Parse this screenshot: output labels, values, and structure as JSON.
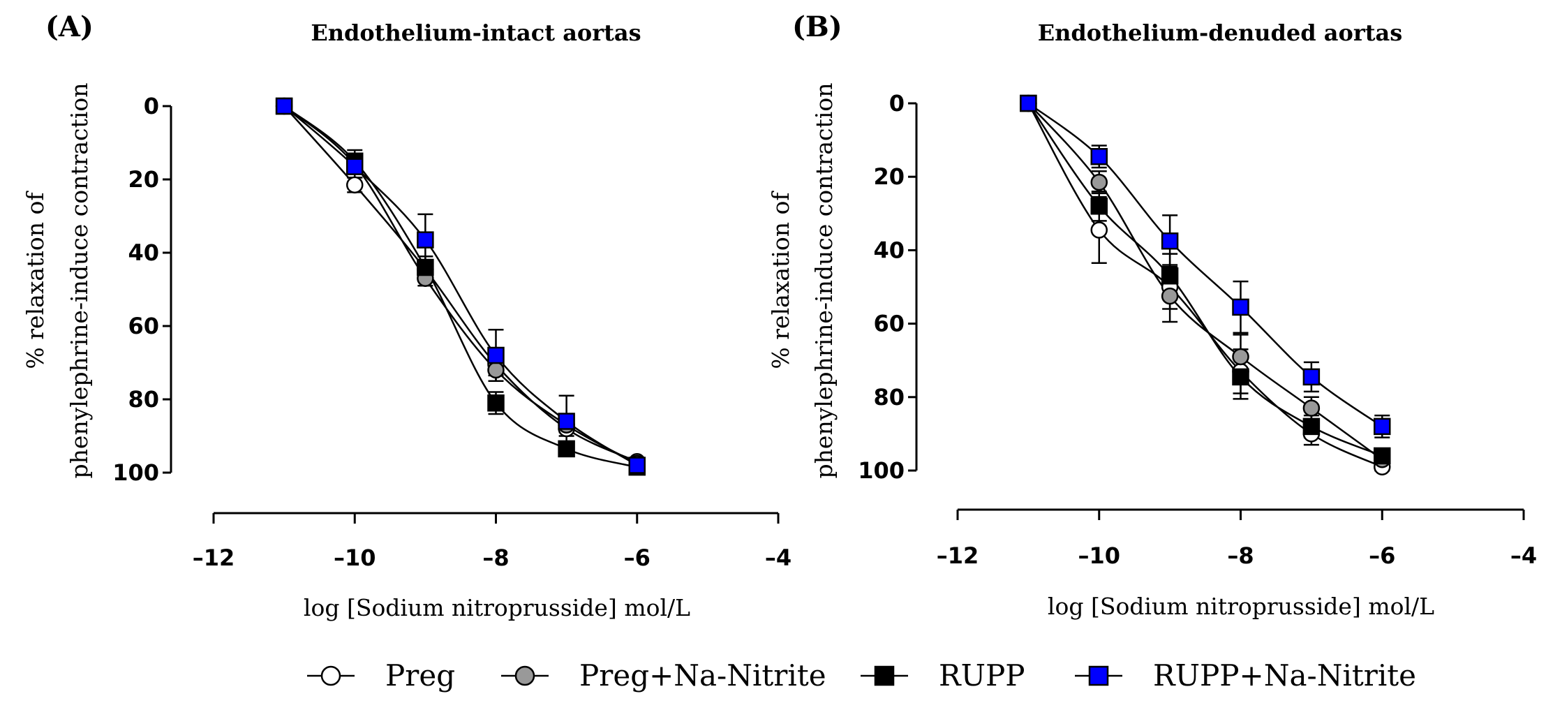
{
  "chart_data": [
    {
      "type": "scatter",
      "panel_label": "(A)",
      "title": "Endothelium-intact aortas",
      "xlabel": "log [Sodium nitroprusside] mol/L",
      "ylabel": [
        "% relaxation of",
        "phenylephrine-induce contraction"
      ],
      "xlim": [
        -12,
        -4
      ],
      "ylim": [
        0,
        100
      ],
      "y_inverted": true,
      "x_ticks": [
        -12,
        -10,
        -8,
        -6,
        -4
      ],
      "x_tick_labels": [
        "–12",
        "–10",
        "–8",
        "–6",
        "–4"
      ],
      "y_ticks": [
        0,
        20,
        40,
        60,
        80,
        100
      ],
      "y_tick_labels": [
        "0",
        "20",
        "40",
        "60",
        "80",
        "100"
      ],
      "series": [
        {
          "name": "Preg",
          "x": [
            -11,
            -10,
            -9,
            -8,
            -7,
            -6
          ],
          "y": [
            0,
            21.5,
            44.5,
            70.5,
            88,
            97
          ],
          "err": [
            0,
            2,
            2,
            3,
            2,
            1
          ]
        },
        {
          "name": "Preg+Na-Nitrite",
          "x": [
            -11,
            -10,
            -9,
            -8,
            -7,
            -6
          ],
          "y": [
            0,
            16,
            47,
            72,
            87,
            97.5
          ],
          "err": [
            0,
            2,
            2,
            3,
            2,
            1
          ]
        },
        {
          "name": "RUPP",
          "x": [
            -11,
            -10,
            -9,
            -8,
            -7,
            -6
          ],
          "y": [
            0,
            15,
            44,
            81,
            93.5,
            98.5
          ],
          "err": [
            0,
            3,
            3,
            3,
            2,
            1
          ]
        },
        {
          "name": "RUPP+Na-Nitrite",
          "x": [
            -11,
            -10,
            -9,
            -8,
            -7,
            -6
          ],
          "y": [
            0,
            16.5,
            36.5,
            68,
            86,
            98
          ],
          "err": [
            0,
            3,
            7,
            7,
            7,
            1
          ]
        }
      ]
    },
    {
      "type": "scatter",
      "panel_label": "(B)",
      "title": "Endothelium-denuded aortas",
      "xlabel": "log [Sodium nitroprusside] mol/L",
      "ylabel": [
        "% relaxation of",
        "phenylephrine-induce contraction"
      ],
      "xlim": [
        -12,
        -4
      ],
      "ylim": [
        0,
        100
      ],
      "y_inverted": true,
      "x_ticks": [
        -12,
        -10,
        -8,
        -6,
        -4
      ],
      "x_tick_labels": [
        "–12",
        "–10",
        "–8",
        "–6",
        "–4"
      ],
      "y_ticks": [
        0,
        20,
        40,
        60,
        80,
        100
      ],
      "y_tick_labels": [
        "0",
        "20",
        "40",
        "60",
        "80",
        "100"
      ],
      "series": [
        {
          "name": "Preg",
          "x": [
            -11,
            -10,
            -9,
            -8,
            -7,
            -6
          ],
          "y": [
            0,
            34.5,
            50,
            73,
            90,
            99
          ],
          "err": [
            0,
            9,
            6,
            6,
            3,
            1
          ]
        },
        {
          "name": "Preg+Na-Nitrite",
          "x": [
            -11,
            -10,
            -9,
            -8,
            -7,
            -6
          ],
          "y": [
            0,
            21.5,
            52.5,
            69,
            83,
            97
          ],
          "err": [
            0,
            3,
            7,
            6,
            3,
            1
          ]
        },
        {
          "name": "RUPP",
          "x": [
            -11,
            -10,
            -9,
            -8,
            -7,
            -6
          ],
          "y": [
            0,
            28,
            47,
            74.5,
            88,
            96
          ],
          "err": [
            0,
            4,
            6,
            6,
            3,
            1
          ]
        },
        {
          "name": "RUPP+Na-Nitrite",
          "x": [
            -11,
            -10,
            -9,
            -8,
            -7,
            -6
          ],
          "y": [
            0,
            14.5,
            37.5,
            55.5,
            74.5,
            88
          ],
          "err": [
            0,
            3,
            7,
            7,
            4,
            3
          ]
        }
      ]
    }
  ],
  "legend": [
    {
      "label": "Preg",
      "marker": "circle",
      "fill": "#ffffff"
    },
    {
      "label": "Preg+Na-Nitrite",
      "marker": "circle",
      "fill": "#999999"
    },
    {
      "label": "RUPP",
      "marker": "square",
      "fill": "#000000"
    },
    {
      "label": "RUPP+Na-Nitrite",
      "marker": "square",
      "fill": "#0000ff"
    }
  ]
}
